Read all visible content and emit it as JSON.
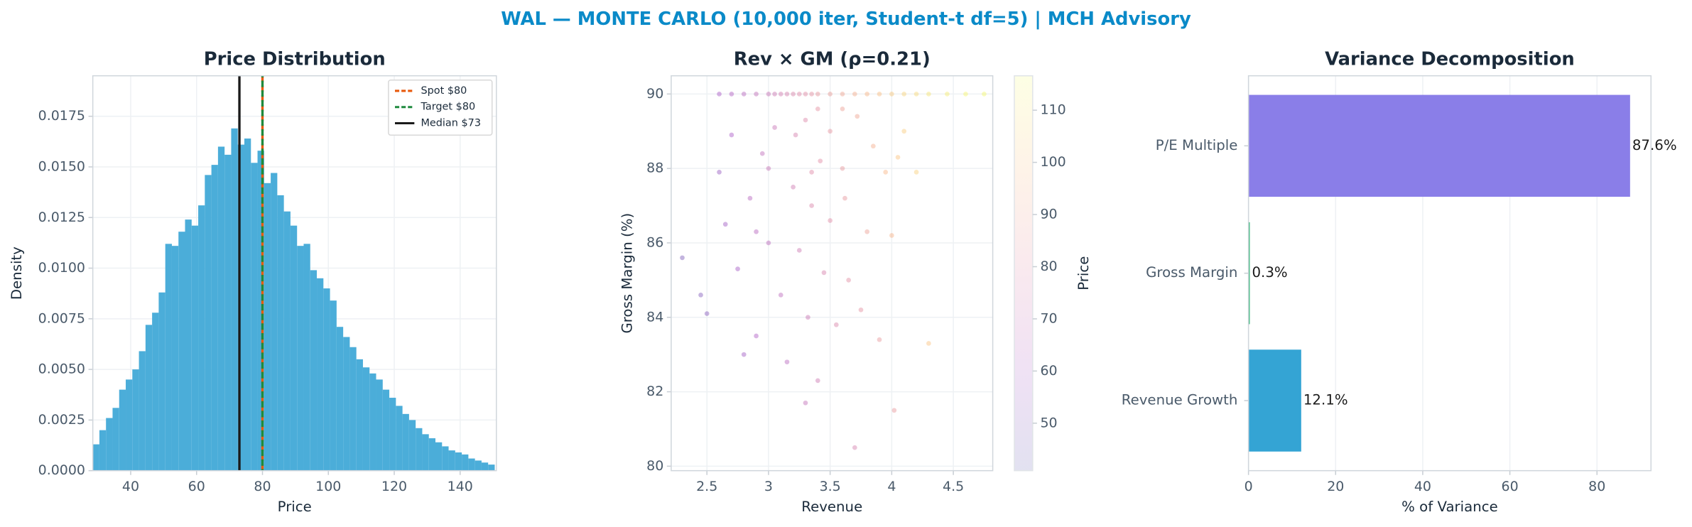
{
  "suptitle": "WAL — MONTE CARLO (10,000 iter, Student-t df=5) | MCH Advisory",
  "chart_data": [
    {
      "type": "histogram",
      "title": "Price Distribution",
      "xlabel": "Price",
      "ylabel": "Density",
      "bins": [
        28.5,
        30.5,
        32.5,
        34.5,
        36.5,
        38.5,
        40.5,
        42.5,
        44.5,
        46.5,
        48.5,
        50.5,
        52.5,
        54.5,
        56.5,
        58.5,
        60.5,
        62.5,
        64.5,
        66.5,
        68.5,
        70.5,
        72.5,
        74.5,
        76.5,
        78.5,
        80.5,
        82.5,
        84.5,
        86.5,
        88.5,
        90.5,
        92.5,
        94.5,
        96.5,
        98.5,
        100.5,
        102.5,
        104.5,
        106.5,
        108.5,
        110.5,
        112.5,
        114.5,
        116.5,
        118.5,
        120.5,
        122.5,
        124.5,
        126.5,
        128.5,
        130.5,
        132.5,
        134.5,
        136.5,
        138.5,
        140.5,
        142.5,
        144.5,
        146.5,
        148.5,
        150.5
      ],
      "values": [
        0.0013,
        0.002,
        0.0026,
        0.0031,
        0.004,
        0.0045,
        0.005,
        0.0059,
        0.0072,
        0.0078,
        0.0088,
        0.0112,
        0.0111,
        0.0118,
        0.0124,
        0.0121,
        0.0131,
        0.0146,
        0.0151,
        0.016,
        0.0156,
        0.0169,
        0.0161,
        0.0164,
        0.0152,
        0.0158,
        0.0142,
        0.0147,
        0.0136,
        0.0128,
        0.0121,
        0.0111,
        0.0112,
        0.0099,
        0.0095,
        0.009,
        0.0084,
        0.0071,
        0.0066,
        0.0061,
        0.0055,
        0.0051,
        0.0048,
        0.0045,
        0.004,
        0.0036,
        0.0032,
        0.0028,
        0.0025,
        0.0021,
        0.0018,
        0.0016,
        0.0014,
        0.0012,
        0.001,
        0.0009,
        0.0008,
        0.0006,
        0.0005,
        0.0004,
        0.0003
      ],
      "color": "#4badd9",
      "xlim": [
        28.5,
        151
      ],
      "ylim": [
        0,
        0.0195
      ],
      "xticks": [
        40,
        60,
        80,
        100,
        120,
        140
      ],
      "yticks": [
        {
          "value": 0,
          "label": "0.0000"
        },
        {
          "value": 0.0025,
          "label": "0.0025"
        },
        {
          "value": 0.005,
          "label": "0.0050"
        },
        {
          "value": 0.0075,
          "label": "0.0075"
        },
        {
          "value": 0.01,
          "label": "0.0100"
        },
        {
          "value": 0.0125,
          "label": "0.0125"
        },
        {
          "value": 0.015,
          "label": "0.0150"
        },
        {
          "value": 0.0175,
          "label": "0.0175"
        }
      ],
      "grid": true,
      "legend": "upper right",
      "lines": [
        {
          "name": "Spot $80",
          "value": 80,
          "color": "#e8590c",
          "style": "dashed"
        },
        {
          "name": "Target $80",
          "value": 80,
          "color": "#1e8a3e",
          "style": "dashed"
        },
        {
          "name": "Median $73",
          "value": 73,
          "color": "#1a1a1a",
          "style": "solid"
        }
      ]
    },
    {
      "type": "scatter",
      "title": "Rev × GM (ρ=0.21)",
      "xlabel": "Revenue",
      "ylabel": "Gross Margin (%)",
      "x": [
        2.6,
        2.7,
        2.8,
        2.9,
        3.0,
        3.05,
        3.1,
        3.15,
        3.2,
        3.25,
        3.3,
        3.35,
        3.4,
        3.5,
        3.6,
        3.7,
        3.8,
        3.9,
        4.0,
        4.1,
        4.2,
        4.3,
        4.45,
        4.6,
        4.75,
        2.3,
        2.45,
        2.5,
        2.6,
        2.65,
        2.7,
        2.75,
        2.8,
        2.85,
        2.9,
        2.95,
        3.0,
        3.05,
        3.1,
        3.15,
        3.2,
        3.22,
        3.25,
        3.3,
        3.32,
        3.35,
        3.4,
        3.42,
        3.45,
        3.5,
        3.5,
        3.55,
        3.6,
        3.62,
        3.65,
        3.7,
        3.72,
        3.75,
        3.8,
        3.85,
        3.9,
        3.95,
        4.0,
        4.02,
        4.05,
        4.1,
        4.2,
        4.3,
        3.3,
        3.4,
        3.0,
        2.9,
        3.6,
        3.35
      ],
      "y": [
        90,
        90,
        90,
        90,
        90,
        90,
        90,
        90,
        90,
        90,
        90,
        90,
        90,
        90,
        90,
        90,
        90,
        90,
        90,
        90,
        90,
        90,
        90,
        90,
        90,
        85.6,
        84.6,
        84.1,
        87.9,
        86.5,
        88.9,
        85.3,
        83.0,
        87.2,
        83.5,
        88.4,
        86.0,
        89.1,
        84.6,
        82.8,
        87.5,
        88.9,
        85.8,
        89.3,
        84.0,
        87.0,
        82.3,
        88.2,
        85.2,
        89.0,
        86.6,
        83.8,
        88.0,
        87.2,
        85.0,
        80.5,
        89.4,
        84.2,
        86.3,
        88.6,
        83.4,
        87.9,
        86.2,
        81.5,
        88.3,
        89.0,
        87.9,
        83.3,
        81.7,
        89.6,
        88.0,
        86.3,
        89.6,
        87.9
      ],
      "c": [
        60,
        62,
        65,
        68,
        70,
        72,
        74,
        75,
        77,
        79,
        80,
        82,
        84,
        87,
        90,
        93,
        96,
        99,
        102,
        105,
        107,
        110,
        113,
        115,
        116,
        48,
        50,
        51,
        55,
        57,
        60,
        58,
        57,
        64,
        61,
        67,
        66,
        70,
        66,
        65,
        73,
        75,
        72,
        78,
        71,
        77,
        72,
        80,
        76,
        83,
        80,
        77,
        85,
        84,
        81,
        75,
        90,
        82,
        88,
        93,
        85,
        96,
        95,
        85,
        100,
        103,
        104,
        100,
        68,
        82,
        70,
        64,
        88,
        79
      ],
      "colormap": "plasma",
      "alpha": 0.3,
      "xlim": [
        2.21,
        4.82
      ],
      "ylim": [
        79.88,
        90.49
      ],
      "xticks": [
        2.5,
        3.0,
        3.5,
        4.0,
        4.5
      ],
      "yticks": [
        80,
        82,
        84,
        86,
        88,
        90
      ],
      "clim": [
        40.9,
        116.6
      ],
      "cticks": [
        50,
        60,
        70,
        80,
        90,
        100,
        110
      ],
      "clabel": "Price",
      "grid": true
    },
    {
      "type": "barh",
      "title": "Variance Decomposition",
      "xlabel": "% of Variance",
      "categories": [
        "Revenue Growth",
        "Gross Margin",
        "P/E Multiple"
      ],
      "values": [
        12.1,
        0.3,
        87.6
      ],
      "value_labels": [
        "12.1%",
        "0.3%",
        "87.6%"
      ],
      "colors": [
        "#34a4d4",
        "#2bb673",
        "#8a7ee8"
      ],
      "xlim": [
        0,
        92.4
      ],
      "xticks": [
        0,
        20,
        40,
        60,
        80
      ],
      "grid": true
    }
  ]
}
